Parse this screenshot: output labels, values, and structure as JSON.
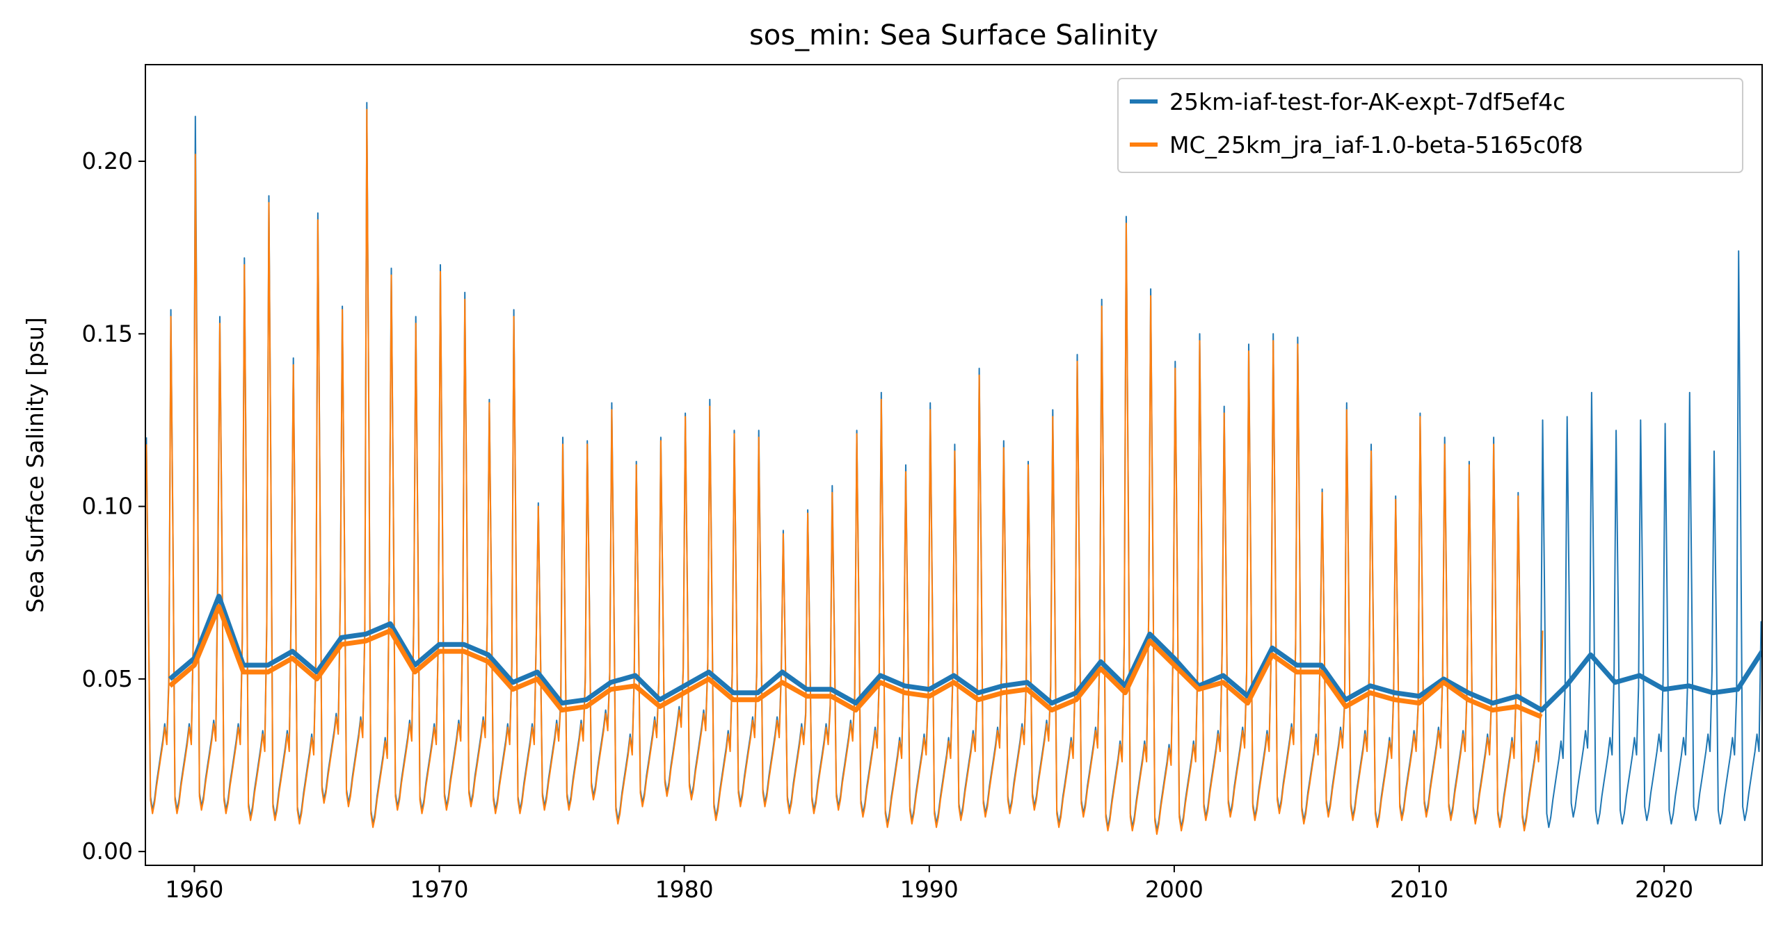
{
  "chart_data": {
    "type": "line",
    "title": "sos_min: Sea Surface Salinity",
    "xlabel": "",
    "ylabel": "Sea Surface Salinity [psu]",
    "xlim": [
      1958,
      2024
    ],
    "ylim": [
      -0.004,
      0.228
    ],
    "xticks": [
      1960,
      1970,
      1980,
      1990,
      2000,
      2010,
      2020
    ],
    "yticks": [
      "0.00",
      "0.05",
      "0.10",
      "0.15",
      "0.20"
    ],
    "grid": false,
    "legend_position": "top-right",
    "series": [
      {
        "name": "25km-iaf-test-for-AK-expt-7df5ef4c",
        "color": "#1f77b4",
        "monthly_years": [
          1958,
          2024
        ],
        "yearly_peaks": [
          0.12,
          0.157,
          0.213,
          0.155,
          0.172,
          0.19,
          0.143,
          0.185,
          0.158,
          0.217,
          0.169,
          0.155,
          0.17,
          0.162,
          0.131,
          0.157,
          0.101,
          0.12,
          0.119,
          0.13,
          0.113,
          0.12,
          0.127,
          0.131,
          0.122,
          0.122,
          0.093,
          0.099,
          0.106,
          0.122,
          0.133,
          0.112,
          0.13,
          0.118,
          0.14,
          0.119,
          0.113,
          0.128,
          0.144,
          0.16,
          0.184,
          0.163,
          0.142,
          0.15,
          0.129,
          0.147,
          0.15,
          0.149,
          0.105,
          0.13,
          0.118,
          0.103,
          0.127,
          0.12,
          0.113,
          0.12,
          0.104,
          0.125,
          0.126,
          0.133,
          0.122,
          0.125,
          0.124,
          0.133,
          0.116,
          0.174
        ],
        "yearly_minima": [
          0.012,
          0.012,
          0.013,
          0.012,
          0.01,
          0.01,
          0.009,
          0.015,
          0.014,
          0.008,
          0.013,
          0.012,
          0.013,
          0.014,
          0.012,
          0.012,
          0.013,
          0.013,
          0.016,
          0.009,
          0.014,
          0.017,
          0.016,
          0.01,
          0.014,
          0.014,
          0.012,
          0.012,
          0.013,
          0.011,
          0.008,
          0.009,
          0.008,
          0.01,
          0.011,
          0.012,
          0.013,
          0.008,
          0.011,
          0.007,
          0.007,
          0.006,
          0.007,
          0.01,
          0.011,
          0.01,
          0.012,
          0.009,
          0.011,
          0.01,
          0.008,
          0.01,
          0.011,
          0.01,
          0.009,
          0.008,
          0.007,
          0.007,
          0.01,
          0.008,
          0.008,
          0.009,
          0.008,
          0.009,
          0.008,
          0.009
        ],
        "annual_mean_years": [
          1959,
          2024
        ],
        "annual_mean": [
          0.05,
          0.056,
          0.074,
          0.054,
          0.054,
          0.058,
          0.052,
          0.062,
          0.063,
          0.066,
          0.054,
          0.06,
          0.06,
          0.057,
          0.049,
          0.052,
          0.043,
          0.044,
          0.049,
          0.051,
          0.044,
          0.048,
          0.052,
          0.046,
          0.046,
          0.052,
          0.047,
          0.047,
          0.043,
          0.051,
          0.048,
          0.047,
          0.051,
          0.046,
          0.048,
          0.049,
          0.043,
          0.046,
          0.055,
          0.048,
          0.063,
          0.056,
          0.048,
          0.051,
          0.045,
          0.059,
          0.054,
          0.054,
          0.044,
          0.048,
          0.046,
          0.045,
          0.05,
          0.046,
          0.043,
          0.045,
          0.041,
          0.048,
          0.057,
          0.049,
          0.051,
          0.047,
          0.048,
          0.046,
          0.047,
          0.058
        ]
      },
      {
        "name": "MC_25km_jra_iaf-1.0-beta-5165c0f8",
        "color": "#ff7f0e",
        "monthly_years": [
          1958,
          2015
        ],
        "yearly_peaks": [
          0.118,
          0.155,
          0.202,
          0.153,
          0.17,
          0.188,
          0.141,
          0.183,
          0.157,
          0.215,
          0.167,
          0.153,
          0.168,
          0.16,
          0.13,
          0.155,
          0.1,
          0.118,
          0.118,
          0.128,
          0.112,
          0.119,
          0.126,
          0.129,
          0.121,
          0.12,
          0.092,
          0.098,
          0.104,
          0.121,
          0.131,
          0.11,
          0.128,
          0.116,
          0.138,
          0.117,
          0.112,
          0.126,
          0.142,
          0.158,
          0.182,
          0.161,
          0.14,
          0.148,
          0.127,
          0.145,
          0.148,
          0.147,
          0.104,
          0.128,
          0.116,
          0.102,
          0.126,
          0.118,
          0.112,
          0.118,
          0.103,
          0.064
        ],
        "yearly_minima": [
          0.011,
          0.011,
          0.012,
          0.011,
          0.009,
          0.009,
          0.008,
          0.014,
          0.013,
          0.007,
          0.012,
          0.011,
          0.012,
          0.013,
          0.011,
          0.011,
          0.012,
          0.012,
          0.015,
          0.008,
          0.013,
          0.016,
          0.015,
          0.009,
          0.013,
          0.013,
          0.011,
          0.011,
          0.012,
          0.01,
          0.007,
          0.008,
          0.007,
          0.009,
          0.01,
          0.011,
          0.012,
          0.007,
          0.01,
          0.006,
          0.006,
          0.005,
          0.006,
          0.009,
          0.01,
          0.009,
          0.011,
          0.008,
          0.01,
          0.009,
          0.007,
          0.009,
          0.01,
          0.009,
          0.008,
          0.007,
          0.006,
          0.006
        ],
        "annual_mean_years": [
          1959,
          2015
        ],
        "annual_mean": [
          0.048,
          0.054,
          0.071,
          0.052,
          0.052,
          0.056,
          0.05,
          0.06,
          0.061,
          0.064,
          0.052,
          0.058,
          0.058,
          0.055,
          0.047,
          0.05,
          0.041,
          0.042,
          0.047,
          0.048,
          0.042,
          0.046,
          0.05,
          0.044,
          0.044,
          0.049,
          0.045,
          0.045,
          0.041,
          0.049,
          0.046,
          0.045,
          0.049,
          0.044,
          0.046,
          0.047,
          0.041,
          0.044,
          0.053,
          0.046,
          0.061,
          0.054,
          0.047,
          0.049,
          0.043,
          0.057,
          0.052,
          0.052,
          0.042,
          0.046,
          0.044,
          0.043,
          0.049,
          0.044,
          0.041,
          0.042,
          0.039
        ]
      }
    ]
  }
}
